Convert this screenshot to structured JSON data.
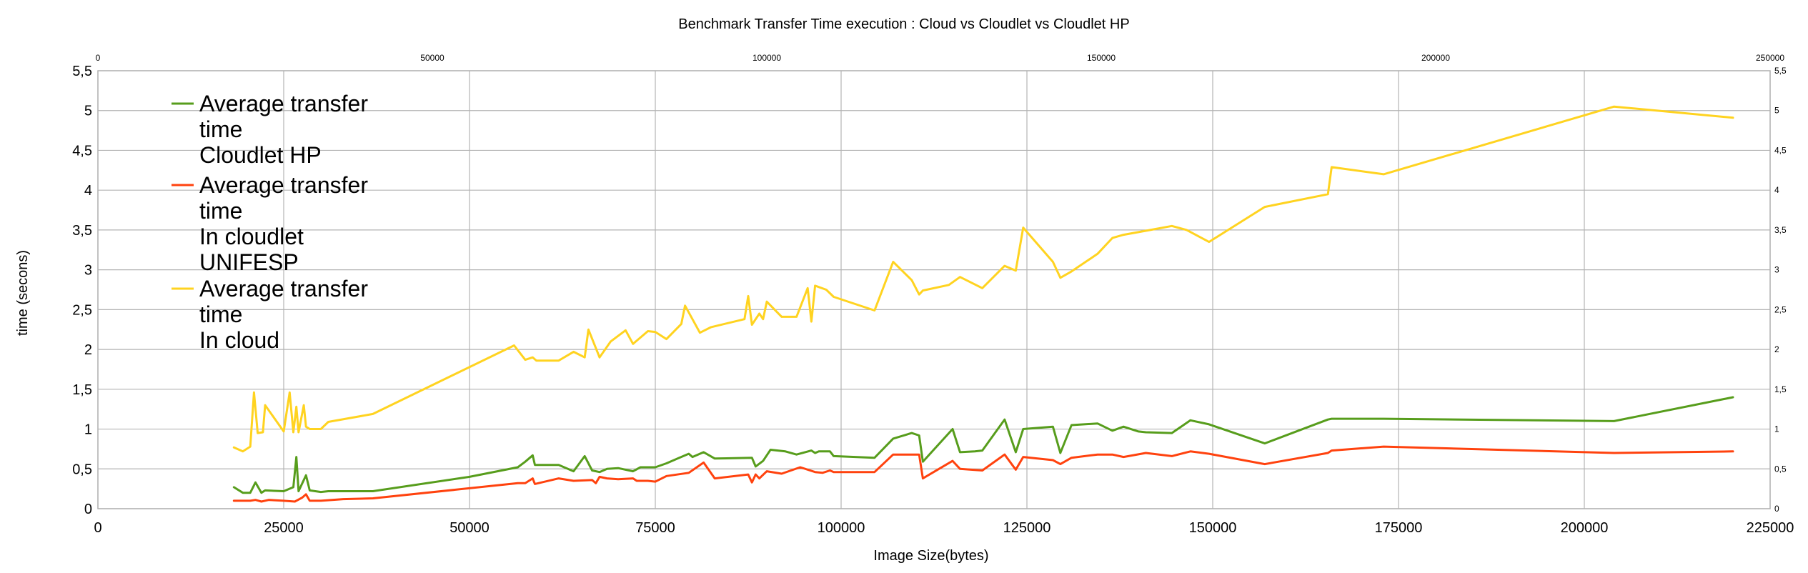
{
  "chart_data": {
    "type": "line",
    "title": "Benchmark Transfer Time execution : Cloud  vs Cloudlet vs Cloudlet HP",
    "xlabel": "Image Size(bytes)",
    "ylabel": "time (secons)",
    "xlim": [
      0,
      225000
    ],
    "ylim": [
      0,
      5.5
    ],
    "x_ticks": [
      "0",
      "25000",
      "50000",
      "75000",
      "100000",
      "125000",
      "150000",
      "175000",
      "200000",
      "225000"
    ],
    "y_ticks": [
      "0",
      "0,5",
      "1",
      "1,5",
      "2",
      "2,5",
      "3",
      "3,5",
      "4",
      "4,5",
      "5",
      "5,5"
    ],
    "secondary_x_ticks": [
      "0",
      "50000",
      "100000",
      "150000",
      "200000",
      "250000"
    ],
    "secondary_xlim": [
      0,
      250000
    ],
    "grid": true,
    "legend_position": "top-left",
    "series": [
      {
        "name": "Average transfer time Cloudlet HP",
        "legend_lines": [
          "Average transfer",
          "time",
          "Cloudlet HP"
        ],
        "color": "#579d1c",
        "points": [
          [
            18300,
            0.27
          ],
          [
            19500,
            0.2
          ],
          [
            20500,
            0.2
          ],
          [
            21200,
            0.33
          ],
          [
            22000,
            0.2
          ],
          [
            22500,
            0.23
          ],
          [
            25000,
            0.22
          ],
          [
            26300,
            0.27
          ],
          [
            26700,
            0.65
          ],
          [
            27000,
            0.22
          ],
          [
            28000,
            0.42
          ],
          [
            28500,
            0.23
          ],
          [
            30000,
            0.21
          ],
          [
            31000,
            0.22
          ],
          [
            33000,
            0.22
          ],
          [
            37000,
            0.22
          ],
          [
            50000,
            0.4
          ],
          [
            56500,
            0.52
          ],
          [
            57500,
            0.59
          ],
          [
            58500,
            0.67
          ],
          [
            58800,
            0.55
          ],
          [
            62000,
            0.55
          ],
          [
            64000,
            0.47
          ],
          [
            65500,
            0.66
          ],
          [
            66500,
            0.48
          ],
          [
            67500,
            0.46
          ],
          [
            68500,
            0.5
          ],
          [
            70000,
            0.51
          ],
          [
            72000,
            0.47
          ],
          [
            73000,
            0.52
          ],
          [
            75000,
            0.52
          ],
          [
            76500,
            0.57
          ],
          [
            78000,
            0.63
          ],
          [
            79500,
            0.69
          ],
          [
            80000,
            0.65
          ],
          [
            81500,
            0.71
          ],
          [
            83000,
            0.63
          ],
          [
            88000,
            0.64
          ],
          [
            88500,
            0.53
          ],
          [
            89500,
            0.6
          ],
          [
            90500,
            0.74
          ],
          [
            92500,
            0.72
          ],
          [
            94000,
            0.68
          ],
          [
            96000,
            0.73
          ],
          [
            96500,
            0.7
          ],
          [
            97000,
            0.72
          ],
          [
            98500,
            0.72
          ],
          [
            99000,
            0.66
          ],
          [
            104500,
            0.64
          ],
          [
            107000,
            0.88
          ],
          [
            109500,
            0.95
          ],
          [
            110500,
            0.92
          ],
          [
            111000,
            0.59
          ],
          [
            115000,
            1.0
          ],
          [
            116000,
            0.71
          ],
          [
            118000,
            0.72
          ],
          [
            119000,
            0.73
          ],
          [
            122000,
            1.12
          ],
          [
            123500,
            0.71
          ],
          [
            124500,
            1.0
          ],
          [
            128500,
            1.03
          ],
          [
            129500,
            0.7
          ],
          [
            131000,
            1.05
          ],
          [
            134500,
            1.07
          ],
          [
            136500,
            0.98
          ],
          [
            138000,
            1.03
          ],
          [
            140000,
            0.97
          ],
          [
            141000,
            0.96
          ],
          [
            144500,
            0.95
          ],
          [
            147000,
            1.11
          ],
          [
            149500,
            1.06
          ],
          [
            157000,
            0.82
          ],
          [
            165500,
            1.12
          ],
          [
            166000,
            1.13
          ],
          [
            173000,
            1.13
          ],
          [
            204000,
            1.1
          ],
          [
            220000,
            1.4
          ]
        ]
      },
      {
        "name": "Average transfer time In cloudlet UNIFESP",
        "legend_lines": [
          "Average transfer",
          "time",
          "In cloudlet",
          "UNIFESP"
        ],
        "color": "#ff420e",
        "points": [
          [
            18300,
            0.1
          ],
          [
            20500,
            0.1
          ],
          [
            21200,
            0.11
          ],
          [
            22000,
            0.09
          ],
          [
            23000,
            0.11
          ],
          [
            25000,
            0.1
          ],
          [
            26500,
            0.09
          ],
          [
            27500,
            0.14
          ],
          [
            28000,
            0.18
          ],
          [
            28500,
            0.1
          ],
          [
            30000,
            0.1
          ],
          [
            33000,
            0.12
          ],
          [
            37000,
            0.13
          ],
          [
            56500,
            0.32
          ],
          [
            57500,
            0.32
          ],
          [
            58500,
            0.38
          ],
          [
            58800,
            0.31
          ],
          [
            62000,
            0.38
          ],
          [
            64000,
            0.35
          ],
          [
            66500,
            0.36
          ],
          [
            67000,
            0.32
          ],
          [
            67500,
            0.4
          ],
          [
            68500,
            0.38
          ],
          [
            70000,
            0.37
          ],
          [
            72000,
            0.38
          ],
          [
            72500,
            0.35
          ],
          [
            74000,
            0.35
          ],
          [
            75000,
            0.34
          ],
          [
            76500,
            0.41
          ],
          [
            79500,
            0.45
          ],
          [
            81500,
            0.58
          ],
          [
            83000,
            0.38
          ],
          [
            87500,
            0.43
          ],
          [
            88000,
            0.33
          ],
          [
            88500,
            0.43
          ],
          [
            89000,
            0.38
          ],
          [
            90000,
            0.47
          ],
          [
            92000,
            0.44
          ],
          [
            94500,
            0.52
          ],
          [
            96500,
            0.46
          ],
          [
            97500,
            0.45
          ],
          [
            98500,
            0.48
          ],
          [
            99000,
            0.46
          ],
          [
            104500,
            0.46
          ],
          [
            107000,
            0.68
          ],
          [
            110500,
            0.68
          ],
          [
            111000,
            0.38
          ],
          [
            115000,
            0.6
          ],
          [
            116000,
            0.5
          ],
          [
            119000,
            0.48
          ],
          [
            122000,
            0.68
          ],
          [
            123500,
            0.49
          ],
          [
            124500,
            0.65
          ],
          [
            128500,
            0.61
          ],
          [
            129500,
            0.56
          ],
          [
            131000,
            0.64
          ],
          [
            134500,
            0.68
          ],
          [
            136500,
            0.68
          ],
          [
            138000,
            0.65
          ],
          [
            141000,
            0.7
          ],
          [
            144500,
            0.66
          ],
          [
            147000,
            0.72
          ],
          [
            149500,
            0.69
          ],
          [
            157000,
            0.56
          ],
          [
            165500,
            0.7
          ],
          [
            166000,
            0.73
          ],
          [
            173000,
            0.78
          ],
          [
            204000,
            0.7
          ],
          [
            220000,
            0.72
          ]
        ]
      },
      {
        "name": "Average transfer time In cloud",
        "legend_lines": [
          "Average transfer",
          "time",
          "In cloud"
        ],
        "color": "#ffd320",
        "points": [
          [
            18300,
            0.77
          ],
          [
            19500,
            0.72
          ],
          [
            20500,
            0.78
          ],
          [
            21000,
            1.46
          ],
          [
            21500,
            0.95
          ],
          [
            22200,
            0.96
          ],
          [
            22500,
            1.3
          ],
          [
            25000,
            0.97
          ],
          [
            25800,
            1.46
          ],
          [
            26300,
            0.96
          ],
          [
            26700,
            1.28
          ],
          [
            27000,
            0.96
          ],
          [
            27700,
            1.3
          ],
          [
            28000,
            1.03
          ],
          [
            28500,
            1.0
          ],
          [
            30000,
            1.0
          ],
          [
            31000,
            1.09
          ],
          [
            37000,
            1.19
          ],
          [
            56000,
            2.05
          ],
          [
            57500,
            1.87
          ],
          [
            58500,
            1.9
          ],
          [
            59000,
            1.86
          ],
          [
            62000,
            1.86
          ],
          [
            64000,
            1.97
          ],
          [
            65500,
            1.9
          ],
          [
            66000,
            2.25
          ],
          [
            67500,
            1.9
          ],
          [
            69000,
            2.1
          ],
          [
            71000,
            2.24
          ],
          [
            72000,
            2.07
          ],
          [
            74000,
            2.23
          ],
          [
            75000,
            2.22
          ],
          [
            76500,
            2.13
          ],
          [
            78500,
            2.32
          ],
          [
            79000,
            2.55
          ],
          [
            81000,
            2.21
          ],
          [
            82500,
            2.28
          ],
          [
            87000,
            2.38
          ],
          [
            87500,
            2.67
          ],
          [
            88000,
            2.31
          ],
          [
            89000,
            2.45
          ],
          [
            89500,
            2.38
          ],
          [
            90000,
            2.6
          ],
          [
            92000,
            2.41
          ],
          [
            94000,
            2.41
          ],
          [
            95500,
            2.77
          ],
          [
            96000,
            2.35
          ],
          [
            96500,
            2.8
          ],
          [
            98000,
            2.75
          ],
          [
            99000,
            2.66
          ],
          [
            104500,
            2.49
          ],
          [
            107000,
            3.1
          ],
          [
            109500,
            2.87
          ],
          [
            110500,
            2.69
          ],
          [
            111000,
            2.74
          ],
          [
            114500,
            2.81
          ],
          [
            116000,
            2.91
          ],
          [
            119000,
            2.77
          ],
          [
            122000,
            3.05
          ],
          [
            123500,
            2.99
          ],
          [
            124500,
            3.53
          ],
          [
            128500,
            3.1
          ],
          [
            129500,
            2.9
          ],
          [
            131000,
            2.98
          ],
          [
            134500,
            3.2
          ],
          [
            136500,
            3.4
          ],
          [
            138000,
            3.44
          ],
          [
            141000,
            3.49
          ],
          [
            144500,
            3.55
          ],
          [
            146500,
            3.5
          ],
          [
            149500,
            3.35
          ],
          [
            157000,
            3.79
          ],
          [
            165500,
            3.95
          ],
          [
            166000,
            4.29
          ],
          [
            173000,
            4.2
          ],
          [
            204000,
            5.05
          ],
          [
            220000,
            4.91
          ]
        ]
      }
    ]
  }
}
